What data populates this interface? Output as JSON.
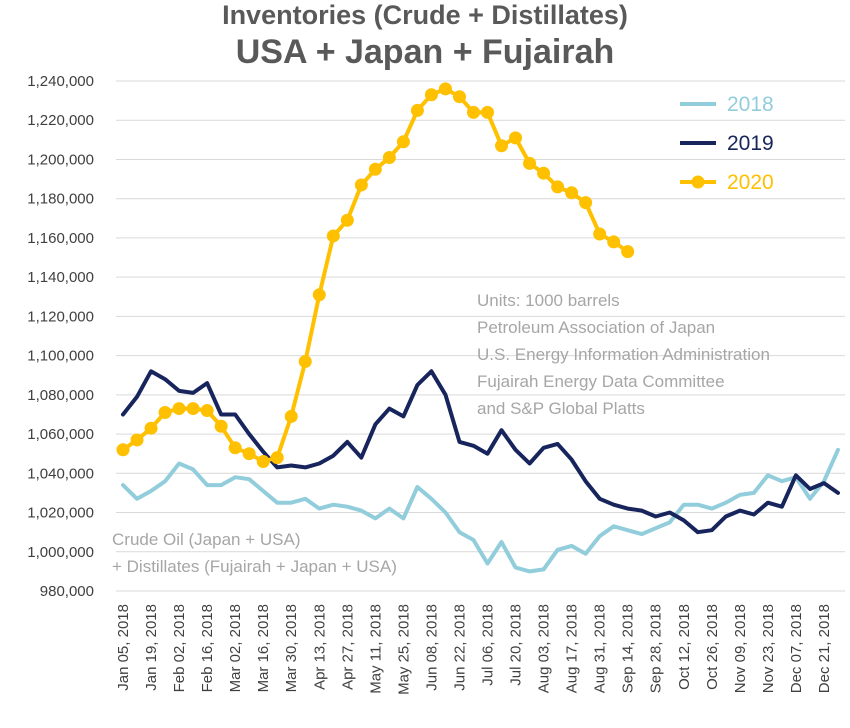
{
  "chart_data": {
    "type": "line",
    "title": "Inventories (Crude + Distillates)",
    "subtitle": "USA + Japan + Fujairah",
    "ylim": [
      980000,
      1240000
    ],
    "y_ticks": [
      980000,
      1000000,
      1020000,
      1040000,
      1060000,
      1080000,
      1100000,
      1120000,
      1140000,
      1160000,
      1180000,
      1200000,
      1220000,
      1240000
    ],
    "y_tick_labels": [
      "980,000",
      "1,000,000",
      "1,020,000",
      "1,040,000",
      "1,060,000",
      "1,080,000",
      "1,100,000",
      "1,120,000",
      "1,140,000",
      "1,160,000",
      "1,180,000",
      "1,200,000",
      "1,220,000",
      "1,240,000"
    ],
    "x_tick_labels": [
      "Jan 05, 2018",
      "Jan 19, 2018",
      "Feb 02, 2018",
      "Feb 16, 2018",
      "Mar 02, 2018",
      "Mar 16, 2018",
      "Mar 30, 2018",
      "Apr 13, 2018",
      "Apr 27, 2018",
      "May 11, 2018",
      "May 25, 2018",
      "Jun 08, 2018",
      "Jun 22, 2018",
      "Jul 06, 2018",
      "Jul 20, 2018",
      "Aug 03, 2018",
      "Aug 17, 2018",
      "Aug 31, 2018",
      "Sep 14, 2018",
      "Sep 28, 2018",
      "Oct 12, 2018",
      "Oct 26, 2018",
      "Nov 09, 2018",
      "Nov 23, 2018",
      "Dec 07, 2018",
      "Dec 21, 2018"
    ],
    "grid": true,
    "legend_position": "top-right",
    "series": [
      {
        "name": "2018",
        "color": "#92cddc",
        "values": [
          1034000,
          1027000,
          1031000,
          1036000,
          1045000,
          1042000,
          1034000,
          1034000,
          1038000,
          1037000,
          1031000,
          1025000,
          1025000,
          1027000,
          1022000,
          1024000,
          1023000,
          1021000,
          1017000,
          1022000,
          1017000,
          1033000,
          1027000,
          1020000,
          1010000,
          1006000,
          994000,
          1005000,
          992000,
          990000,
          991000,
          1001000,
          1003000,
          999000,
          1008000,
          1013000,
          1011000,
          1009000,
          1012000,
          1015000,
          1024000,
          1024000,
          1022000,
          1025000,
          1029000,
          1030000,
          1039000,
          1036000,
          1038000,
          1027000,
          1036000,
          1052000
        ]
      },
      {
        "name": "2019",
        "color": "#17255c",
        "values": [
          1070000,
          1079000,
          1092000,
          1088000,
          1082000,
          1081000,
          1086000,
          1070000,
          1070000,
          1060000,
          1051000,
          1043000,
          1044000,
          1043000,
          1045000,
          1049000,
          1056000,
          1048000,
          1065000,
          1073000,
          1069000,
          1085000,
          1092000,
          1080000,
          1056000,
          1054000,
          1050000,
          1062000,
          1052000,
          1045000,
          1053000,
          1055000,
          1047000,
          1036000,
          1027000,
          1024000,
          1022000,
          1021000,
          1018000,
          1020000,
          1016000,
          1010000,
          1011000,
          1018000,
          1021000,
          1019000,
          1025000,
          1023000,
          1039000,
          1032000,
          1035000,
          1030000
        ]
      },
      {
        "name": "2020",
        "color": "#ffc000",
        "markers": true,
        "values": [
          1052000,
          1057000,
          1063000,
          1071000,
          1073000,
          1073000,
          1072000,
          1064000,
          1053000,
          1050000,
          1046000,
          1048000,
          1069000,
          1097000,
          1131000,
          1161000,
          1169000,
          1187000,
          1195000,
          1201000,
          1209000,
          1225000,
          1233000,
          1236000,
          1232000,
          1224000,
          1224000,
          1207000,
          1211000,
          1198000,
          1193000,
          1186000,
          1183000,
          1178000,
          1162000,
          1158000,
          1153000
        ]
      }
    ],
    "annotations": {
      "units_note": [
        "Units: 1000 barrels",
        "Petroleum Association of Japan",
        "U.S. Energy Information Administration",
        "Fujairah Energy Data Committee",
        "and S&P Global Platts"
      ],
      "series_note": [
        "Crude Oil (Japan + USA)",
        "+ Distillates (Fujairah + Japan + USA)"
      ]
    }
  }
}
